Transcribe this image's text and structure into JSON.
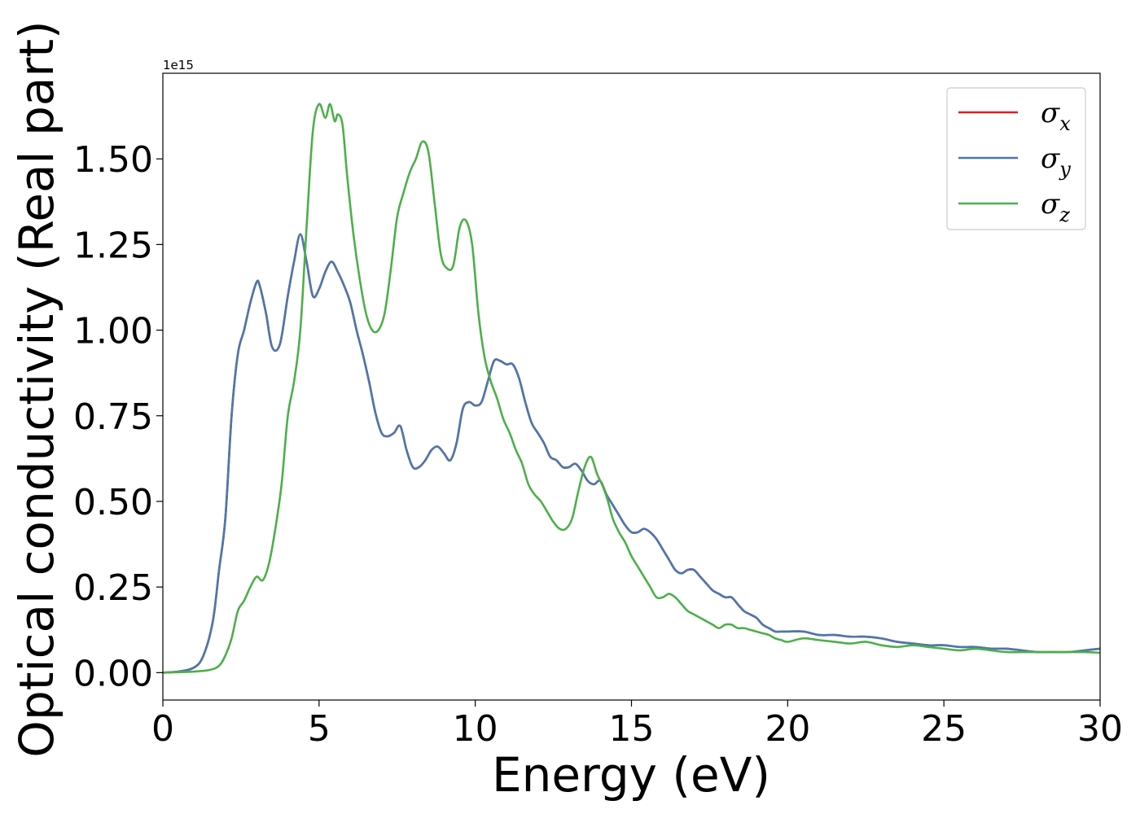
{
  "chart_data": {
    "type": "line",
    "xlabel": "Energy (eV)",
    "ylabel": "Optical conductivity (Real part)",
    "y_offset_label": "1e15",
    "xlim": [
      0,
      30
    ],
    "ylim": [
      -0.08,
      1.75
    ],
    "x_ticks": [
      0,
      5,
      10,
      15,
      20,
      25,
      30
    ],
    "y_ticks": [
      0.0,
      0.25,
      0.5,
      0.75,
      1.0,
      1.25,
      1.5
    ],
    "x_tick_labels": [
      "0",
      "5",
      "10",
      "15",
      "20",
      "25",
      "30"
    ],
    "y_tick_labels": [
      "0.00",
      "0.25",
      "0.50",
      "0.75",
      "1.00",
      "1.25",
      "1.50"
    ],
    "legend_position": "upper-right",
    "grid": false,
    "series": [
      {
        "name": "σx",
        "symbol": "σ",
        "subscript": "x",
        "color": "#e41a1c",
        "x": [
          0,
          0.5,
          1,
          1.3,
          1.6,
          1.8,
          2,
          2.2,
          2.4,
          2.6,
          2.8,
          3,
          3.1,
          3.3,
          3.5,
          3.75,
          4,
          4.2,
          4.4,
          4.6,
          4.8,
          5,
          5.2,
          5.4,
          5.6,
          5.8,
          6,
          6.2,
          6.4,
          6.6,
          6.8,
          7,
          7.2,
          7.4,
          7.6,
          7.8,
          8,
          8.2,
          8.4,
          8.6,
          8.8,
          9,
          9.2,
          9.4,
          9.6,
          9.8,
          10,
          10.2,
          10.4,
          10.6,
          10.8,
          11,
          11.2,
          11.4,
          11.6,
          11.8,
          12,
          12.2,
          12.4,
          12.6,
          12.8,
          13,
          13.2,
          13.4,
          13.6,
          13.8,
          14,
          14.2,
          14.4,
          14.6,
          14.8,
          15,
          15.2,
          15.4,
          15.6,
          15.8,
          16,
          16.2,
          16.4,
          16.6,
          16.8,
          17,
          17.2,
          17.4,
          17.6,
          17.8,
          18,
          18.2,
          18.4,
          18.6,
          18.8,
          19,
          19.2,
          19.4,
          19.6,
          19.8,
          20,
          20.5,
          21,
          21.5,
          22,
          22.5,
          23,
          23.5,
          24,
          24.5,
          25,
          25.5,
          26,
          26.5,
          27,
          27.5,
          28,
          28.5,
          29,
          29.5,
          30
        ],
        "values": [
          0.0,
          0.003,
          0.015,
          0.05,
          0.15,
          0.3,
          0.45,
          0.75,
          0.93,
          1.0,
          1.08,
          1.14,
          1.13,
          1.05,
          0.95,
          0.96,
          1.1,
          1.2,
          1.28,
          1.2,
          1.1,
          1.12,
          1.17,
          1.2,
          1.17,
          1.13,
          1.08,
          1.0,
          0.93,
          0.85,
          0.76,
          0.7,
          0.69,
          0.7,
          0.72,
          0.65,
          0.6,
          0.6,
          0.62,
          0.65,
          0.66,
          0.64,
          0.62,
          0.67,
          0.77,
          0.79,
          0.78,
          0.79,
          0.85,
          0.91,
          0.91,
          0.9,
          0.9,
          0.86,
          0.79,
          0.73,
          0.7,
          0.67,
          0.63,
          0.62,
          0.6,
          0.6,
          0.61,
          0.59,
          0.56,
          0.55,
          0.56,
          0.52,
          0.49,
          0.46,
          0.43,
          0.41,
          0.41,
          0.42,
          0.41,
          0.39,
          0.36,
          0.33,
          0.3,
          0.29,
          0.3,
          0.3,
          0.28,
          0.26,
          0.24,
          0.23,
          0.22,
          0.22,
          0.2,
          0.18,
          0.17,
          0.16,
          0.14,
          0.13,
          0.12,
          0.12,
          0.12,
          0.12,
          0.11,
          0.11,
          0.105,
          0.105,
          0.1,
          0.09,
          0.085,
          0.08,
          0.08,
          0.075,
          0.075,
          0.07,
          0.07,
          0.065,
          0.06,
          0.06,
          0.06,
          0.065,
          0.07
        ]
      },
      {
        "name": "σy",
        "symbol": "σ",
        "subscript": "y",
        "color": "#4a78ad",
        "x": [
          0,
          0.5,
          1,
          1.3,
          1.6,
          1.8,
          2,
          2.2,
          2.4,
          2.6,
          2.8,
          3,
          3.1,
          3.3,
          3.5,
          3.75,
          4,
          4.2,
          4.4,
          4.6,
          4.8,
          5,
          5.2,
          5.4,
          5.6,
          5.8,
          6,
          6.2,
          6.4,
          6.6,
          6.8,
          7,
          7.2,
          7.4,
          7.6,
          7.8,
          8,
          8.2,
          8.4,
          8.6,
          8.8,
          9,
          9.2,
          9.4,
          9.6,
          9.8,
          10,
          10.2,
          10.4,
          10.6,
          10.8,
          11,
          11.2,
          11.4,
          11.6,
          11.8,
          12,
          12.2,
          12.4,
          12.6,
          12.8,
          13,
          13.2,
          13.4,
          13.6,
          13.8,
          14,
          14.2,
          14.4,
          14.6,
          14.8,
          15,
          15.2,
          15.4,
          15.6,
          15.8,
          16,
          16.2,
          16.4,
          16.6,
          16.8,
          17,
          17.2,
          17.4,
          17.6,
          17.8,
          18,
          18.2,
          18.4,
          18.6,
          18.8,
          19,
          19.2,
          19.4,
          19.6,
          19.8,
          20,
          20.5,
          21,
          21.5,
          22,
          22.5,
          23,
          23.5,
          24,
          24.5,
          25,
          25.5,
          26,
          26.5,
          27,
          27.5,
          28,
          28.5,
          29,
          29.5,
          30
        ],
        "values": [
          0.0,
          0.003,
          0.015,
          0.05,
          0.15,
          0.3,
          0.45,
          0.75,
          0.93,
          1.0,
          1.08,
          1.14,
          1.13,
          1.05,
          0.95,
          0.96,
          1.1,
          1.2,
          1.28,
          1.2,
          1.1,
          1.12,
          1.17,
          1.2,
          1.17,
          1.13,
          1.08,
          1.0,
          0.93,
          0.85,
          0.76,
          0.7,
          0.69,
          0.7,
          0.72,
          0.65,
          0.6,
          0.6,
          0.62,
          0.65,
          0.66,
          0.64,
          0.62,
          0.67,
          0.77,
          0.79,
          0.78,
          0.79,
          0.85,
          0.91,
          0.91,
          0.9,
          0.9,
          0.86,
          0.79,
          0.73,
          0.7,
          0.67,
          0.63,
          0.62,
          0.6,
          0.6,
          0.61,
          0.59,
          0.56,
          0.55,
          0.56,
          0.52,
          0.49,
          0.46,
          0.43,
          0.41,
          0.41,
          0.42,
          0.41,
          0.39,
          0.36,
          0.33,
          0.3,
          0.29,
          0.3,
          0.3,
          0.28,
          0.26,
          0.24,
          0.23,
          0.22,
          0.22,
          0.2,
          0.18,
          0.17,
          0.16,
          0.14,
          0.13,
          0.12,
          0.12,
          0.12,
          0.12,
          0.11,
          0.11,
          0.105,
          0.105,
          0.1,
          0.09,
          0.085,
          0.08,
          0.08,
          0.075,
          0.075,
          0.07,
          0.07,
          0.065,
          0.06,
          0.06,
          0.06,
          0.065,
          0.07
        ]
      },
      {
        "name": "σz",
        "symbol": "σ",
        "subscript": "z",
        "color": "#4daf4a",
        "x": [
          0,
          1,
          1.5,
          1.8,
          2,
          2.2,
          2.4,
          2.6,
          2.8,
          3,
          3.2,
          3.4,
          3.6,
          3.8,
          4,
          4.2,
          4.4,
          4.6,
          4.8,
          5,
          5.2,
          5.35,
          5.5,
          5.6,
          5.75,
          5.9,
          6.1,
          6.3,
          6.5,
          6.7,
          6.9,
          7.1,
          7.3,
          7.5,
          7.7,
          7.9,
          8.1,
          8.3,
          8.5,
          8.7,
          8.9,
          9.1,
          9.3,
          9.5,
          9.7,
          9.9,
          10.1,
          10.3,
          10.5,
          10.7,
          10.9,
          11.1,
          11.3,
          11.5,
          11.7,
          11.9,
          12.1,
          12.3,
          12.5,
          12.7,
          12.9,
          13.1,
          13.3,
          13.5,
          13.7,
          13.9,
          14.1,
          14.25,
          14.4,
          14.6,
          14.8,
          15,
          15.2,
          15.4,
          15.6,
          15.8,
          16,
          16.2,
          16.4,
          16.6,
          16.8,
          17,
          17.2,
          17.4,
          17.6,
          17.8,
          18,
          18.2,
          18.4,
          18.6,
          18.8,
          19,
          19.2,
          19.4,
          19.6,
          19.8,
          20,
          20.5,
          21,
          21.5,
          22,
          22.5,
          23,
          23.5,
          24,
          24.5,
          25,
          25.5,
          26,
          26.5,
          27,
          27.5,
          28,
          28.5,
          29,
          29.5,
          30
        ],
        "values": [
          0.0,
          0.003,
          0.008,
          0.02,
          0.05,
          0.1,
          0.18,
          0.21,
          0.25,
          0.28,
          0.27,
          0.32,
          0.42,
          0.55,
          0.75,
          0.85,
          1.0,
          1.3,
          1.58,
          1.66,
          1.62,
          1.66,
          1.61,
          1.63,
          1.6,
          1.45,
          1.28,
          1.15,
          1.05,
          1.0,
          1.0,
          1.05,
          1.18,
          1.33,
          1.4,
          1.46,
          1.5,
          1.55,
          1.52,
          1.37,
          1.22,
          1.18,
          1.19,
          1.3,
          1.32,
          1.25,
          1.05,
          0.92,
          0.85,
          0.8,
          0.74,
          0.7,
          0.65,
          0.61,
          0.55,
          0.52,
          0.5,
          0.47,
          0.44,
          0.42,
          0.42,
          0.45,
          0.53,
          0.6,
          0.63,
          0.58,
          0.54,
          0.5,
          0.45,
          0.41,
          0.38,
          0.34,
          0.31,
          0.28,
          0.25,
          0.22,
          0.22,
          0.23,
          0.22,
          0.2,
          0.18,
          0.17,
          0.16,
          0.15,
          0.14,
          0.13,
          0.14,
          0.14,
          0.13,
          0.13,
          0.125,
          0.12,
          0.115,
          0.11,
          0.1,
          0.095,
          0.09,
          0.1,
          0.095,
          0.09,
          0.085,
          0.09,
          0.08,
          0.075,
          0.08,
          0.075,
          0.07,
          0.065,
          0.07,
          0.065,
          0.06,
          0.06,
          0.06,
          0.06,
          0.06,
          0.06,
          0.058
        ]
      }
    ]
  }
}
